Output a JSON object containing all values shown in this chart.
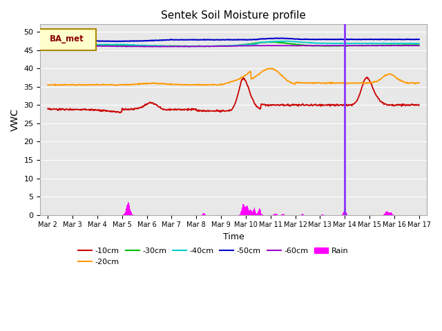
{
  "title": "Sentek Soil Moisture profile",
  "xlabel": "Time",
  "ylabel": "VWC",
  "legend_label": "BA_met",
  "ylim": [
    0,
    52
  ],
  "yticks": [
    0,
    5,
    10,
    15,
    20,
    25,
    30,
    35,
    40,
    45,
    50
  ],
  "xtick_labels": [
    "Mar 2",
    "Mar 3",
    "Mar 4",
    "Mar 5",
    "Mar 6",
    "Mar 7",
    "Mar 8",
    "Mar 9",
    "Mar 10",
    "Mar 11",
    "Mar 12",
    "Mar 13",
    "Mar 14",
    "Mar 15",
    "Mar 16",
    "Mar 17"
  ],
  "colors": {
    "10cm": "#cc0000",
    "20cm": "#ff9900",
    "30cm": "#00bb00",
    "40cm": "#00cccc",
    "50cm": "#0000cc",
    "60cm": "#9900cc",
    "rain": "#ff00ff"
  },
  "vline_day": 12,
  "vline_color": "#8833ff",
  "background_color": "#e8e8e8",
  "grid_color": "#ffffff",
  "figsize": [
    6.4,
    4.8
  ],
  "dpi": 100
}
